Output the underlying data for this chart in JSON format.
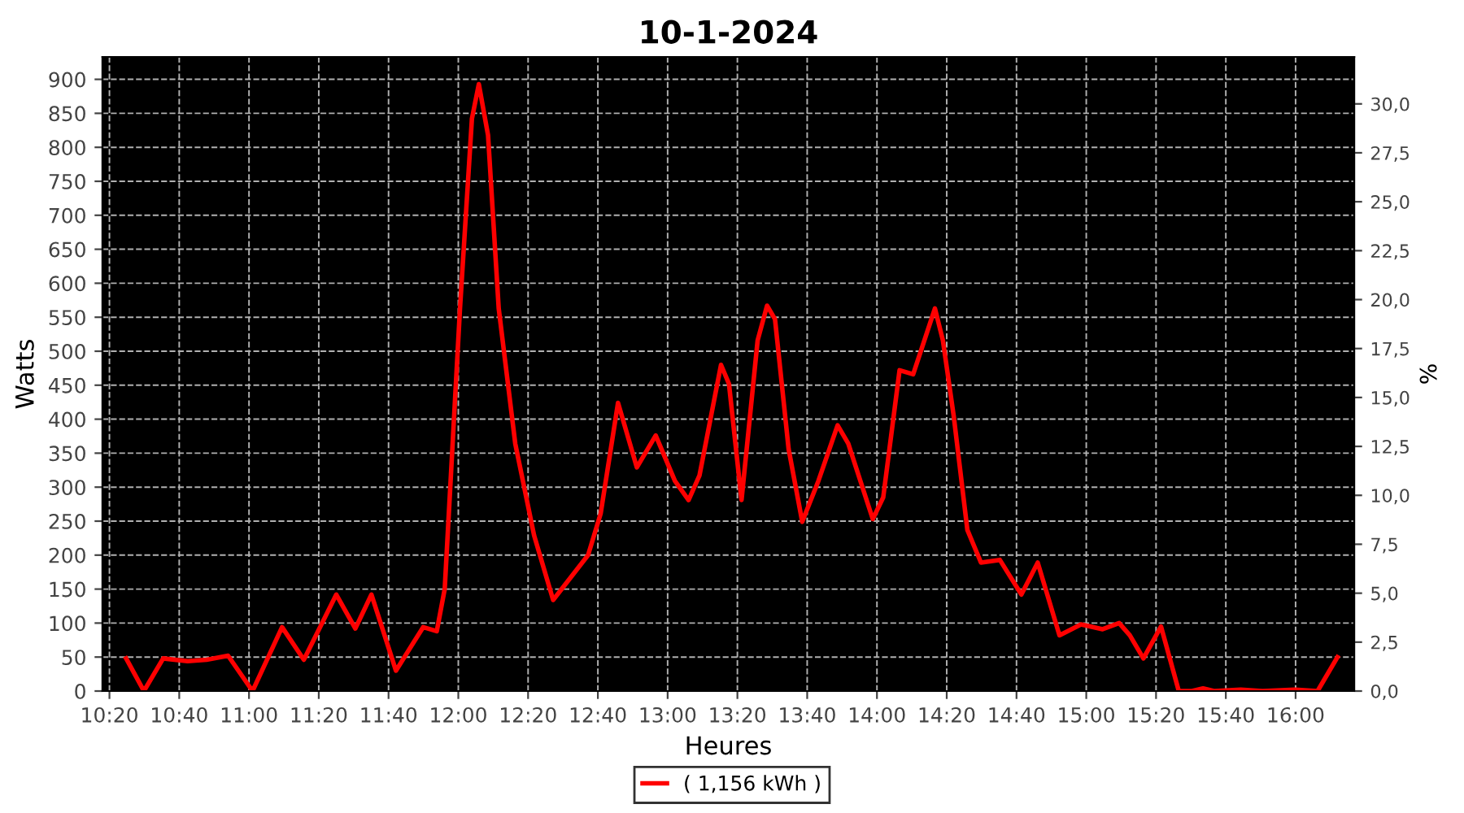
{
  "chart_data": {
    "type": "line",
    "title": "10-1-2024",
    "xlabel": "Heures",
    "ylabel": "Watts",
    "y2label": "%",
    "grid": true,
    "legend": "bottom",
    "line_style": "solid",
    "marker": "none",
    "x": [
      10.413,
      10.498,
      10.59,
      10.707,
      10.797,
      10.9,
      11.017,
      11.158,
      11.262,
      11.417,
      11.508,
      11.585,
      11.702,
      11.832,
      11.897,
      11.935,
      12.008,
      12.065,
      12.098,
      12.142,
      12.193,
      12.272,
      12.362,
      12.453,
      12.62,
      12.68,
      12.763,
      12.853,
      12.943,
      13.035,
      13.1,
      13.152,
      13.255,
      13.293,
      13.353,
      13.43,
      13.475,
      13.513,
      13.578,
      13.643,
      13.72,
      13.812,
      13.863,
      13.98,
      14.03,
      14.108,
      14.173,
      14.277,
      14.315,
      14.367,
      14.432,
      14.497,
      14.587,
      14.69,
      14.768,
      14.872,
      14.975,
      15.078,
      15.157,
      15.208,
      15.273,
      15.357,
      15.442,
      15.505,
      15.558,
      15.61,
      15.738,
      15.842,
      15.997,
      16.105,
      16.2
    ],
    "series": [
      {
        "name": "( 1,156 kWh )",
        "color": "#ff0000",
        "values": [
          48,
          0,
          48,
          44,
          46,
          52,
          0,
          94,
          46,
          142,
          92,
          142,
          30,
          94,
          88,
          150,
          563,
          842,
          893,
          818,
          563,
          364,
          229,
          134,
          200,
          261,
          424,
          329,
          376,
          309,
          281,
          317,
          480,
          452,
          281,
          516,
          567,
          547,
          356,
          249,
          309,
          391,
          364,
          253,
          285,
          472,
          466,
          563,
          516,
          404,
          237,
          189,
          193,
          142,
          189,
          82,
          98,
          91,
          100,
          82,
          48,
          95,
          0,
          0,
          4,
          0,
          2,
          0,
          2,
          0,
          50
        ]
      }
    ],
    "xlim": [
      10.3,
      16.28
    ],
    "xticks": [
      {
        "value": 10.3333,
        "label": "10:20"
      },
      {
        "value": 10.6667,
        "label": "10:40"
      },
      {
        "value": 11,
        "label": "11:00"
      },
      {
        "value": 11.3333,
        "label": "11:20"
      },
      {
        "value": 11.6667,
        "label": "11:40"
      },
      {
        "value": 12,
        "label": "12:00"
      },
      {
        "value": 12.3333,
        "label": "12:20"
      },
      {
        "value": 12.6667,
        "label": "12:40"
      },
      {
        "value": 13,
        "label": "13:00"
      },
      {
        "value": 13.3333,
        "label": "13:20"
      },
      {
        "value": 13.6667,
        "label": "13:40"
      },
      {
        "value": 14,
        "label": "14:00"
      },
      {
        "value": 14.3333,
        "label": "14:20"
      },
      {
        "value": 14.6667,
        "label": "14:40"
      },
      {
        "value": 15,
        "label": "15:00"
      },
      {
        "value": 15.3333,
        "label": "15:20"
      },
      {
        "value": 15.6667,
        "label": "15:40"
      },
      {
        "value": 16,
        "label": "16:00"
      }
    ],
    "ylim": [
      0,
      933
    ],
    "yticks": [
      0,
      50,
      100,
      150,
      200,
      250,
      300,
      350,
      400,
      450,
      500,
      550,
      600,
      650,
      700,
      750,
      800,
      850,
      900
    ],
    "y2lim": [
      0,
      32.4
    ],
    "y2ticks": [
      {
        "value": 0,
        "label": "0,0"
      },
      {
        "value": 2.5,
        "label": "2,5"
      },
      {
        "value": 5,
        "label": "5,0"
      },
      {
        "value": 7.5,
        "label": "7,5"
      },
      {
        "value": 10,
        "label": "10,0"
      },
      {
        "value": 12.5,
        "label": "12,5"
      },
      {
        "value": 15,
        "label": "15,0"
      },
      {
        "value": 17.5,
        "label": "17,5"
      },
      {
        "value": 20,
        "label": "20,0"
      },
      {
        "value": 22.5,
        "label": "22,5"
      },
      {
        "value": 25,
        "label": "25,0"
      },
      {
        "value": 27.5,
        "label": "27,5"
      },
      {
        "value": 30,
        "label": "30,0"
      }
    ]
  }
}
